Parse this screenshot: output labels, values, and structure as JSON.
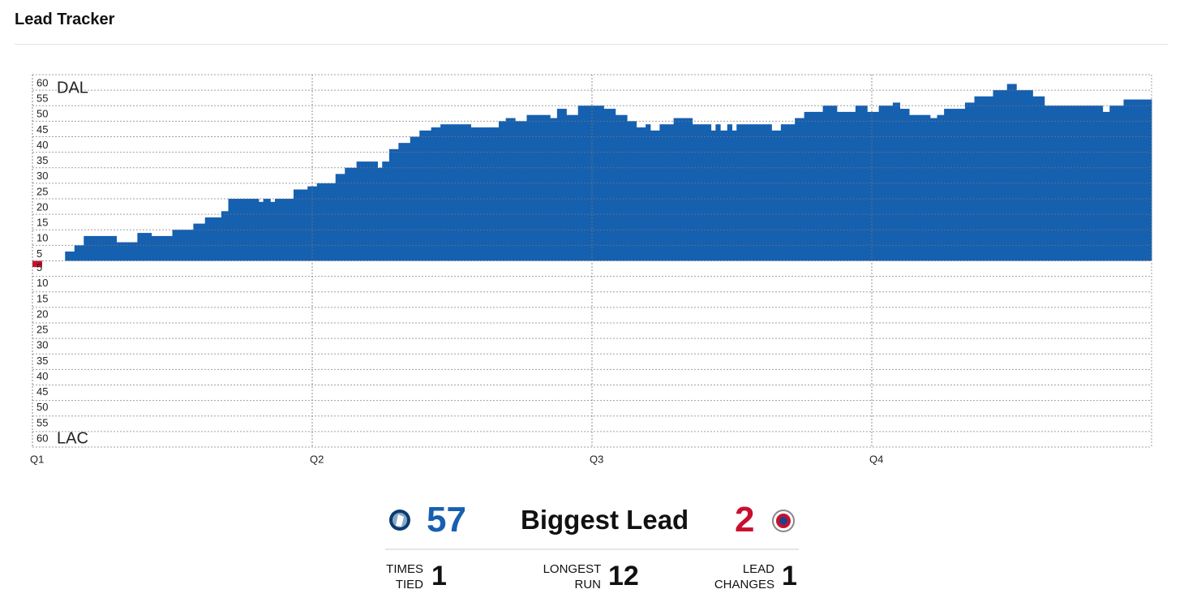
{
  "header": {
    "title": "Lead Tracker"
  },
  "chart_data": {
    "type": "step-area",
    "top_label": "DAL",
    "bottom_label": "LAC",
    "x": [
      0,
      0.4,
      1.4,
      1.8,
      2.2,
      3.6,
      4.5,
      5.1,
      6.0,
      6.9,
      7.4,
      8.1,
      8.4,
      9.7,
      9.9,
      10.2,
      10.4,
      11.2,
      11.8,
      12.2,
      13.0,
      13.4,
      13.9,
      14.8,
      15.0,
      15.3,
      15.7,
      16.2,
      16.6,
      17.1,
      17.5,
      18.8,
      20.0,
      20.3,
      20.7,
      21.2,
      22.2,
      22.5,
      22.9,
      23.4,
      24.5,
      25.0,
      25.5,
      25.9,
      26.3,
      26.5,
      26.9,
      27.5,
      28.3,
      29.1,
      29.3,
      29.5,
      29.8,
      30.0,
      30.2,
      31.7,
      32.1,
      32.7,
      33.1,
      33.9,
      34.5,
      35.3,
      35.8,
      36.3,
      36.9,
      37.2,
      37.6,
      38.5,
      38.8,
      39.1,
      40.0,
      40.4,
      41.2,
      41.8,
      42.2,
      42.9,
      43.4,
      45.9,
      46.2,
      46.8
    ],
    "values": [
      -2,
      0,
      3,
      5,
      8,
      6,
      9,
      8,
      10,
      12,
      14,
      16,
      20,
      19,
      20,
      19,
      20,
      23,
      24,
      25,
      28,
      30,
      32,
      30,
      32,
      36,
      38,
      40,
      42,
      43,
      44,
      43,
      45,
      46,
      45,
      47,
      46,
      49,
      47,
      50,
      49,
      47,
      45,
      43,
      44,
      42,
      44,
      46,
      44,
      42,
      44,
      42,
      44,
      42,
      44,
      42,
      44,
      46,
      48,
      50,
      48,
      50,
      48,
      50,
      51,
      49,
      47,
      46,
      47,
      49,
      51,
      53,
      55,
      57,
      55,
      53,
      50,
      48,
      50,
      52
    ],
    "color": "#1660b0",
    "negative_color": "#c8102e",
    "xlim": [
      0,
      48
    ],
    "xticks": [
      {
        "value": 0,
        "label": "Q1"
      },
      {
        "value": 12,
        "label": "Q2"
      },
      {
        "value": 24,
        "label": "Q3"
      },
      {
        "value": 36,
        "label": "Q4"
      }
    ],
    "ylim": [
      -60,
      60
    ],
    "yticks": [
      60,
      55,
      50,
      45,
      40,
      35,
      30,
      25,
      20,
      15,
      10,
      5,
      {
        "value": -5,
        "label": "5"
      },
      {
        "value": -10,
        "label": "10"
      },
      {
        "value": -15,
        "label": "15"
      },
      {
        "value": -20,
        "label": "20"
      },
      {
        "value": -25,
        "label": "25"
      },
      {
        "value": -30,
        "label": "30"
      },
      {
        "value": -35,
        "label": "35"
      },
      {
        "value": -40,
        "label": "40"
      },
      {
        "value": -45,
        "label": "45"
      },
      {
        "value": -50,
        "label": "50"
      },
      {
        "value": -55,
        "label": "55"
      },
      {
        "value": -60,
        "label": "60"
      }
    ],
    "grid": true
  },
  "biggest_lead": {
    "label": "Biggest Lead",
    "home": 57,
    "away": 2
  },
  "stats": [
    {
      "label": "TIMES TIED",
      "value": 1
    },
    {
      "label": "LONGEST RUN",
      "value": 12
    },
    {
      "label": "LEAD CHANGES",
      "value": 1
    }
  ]
}
